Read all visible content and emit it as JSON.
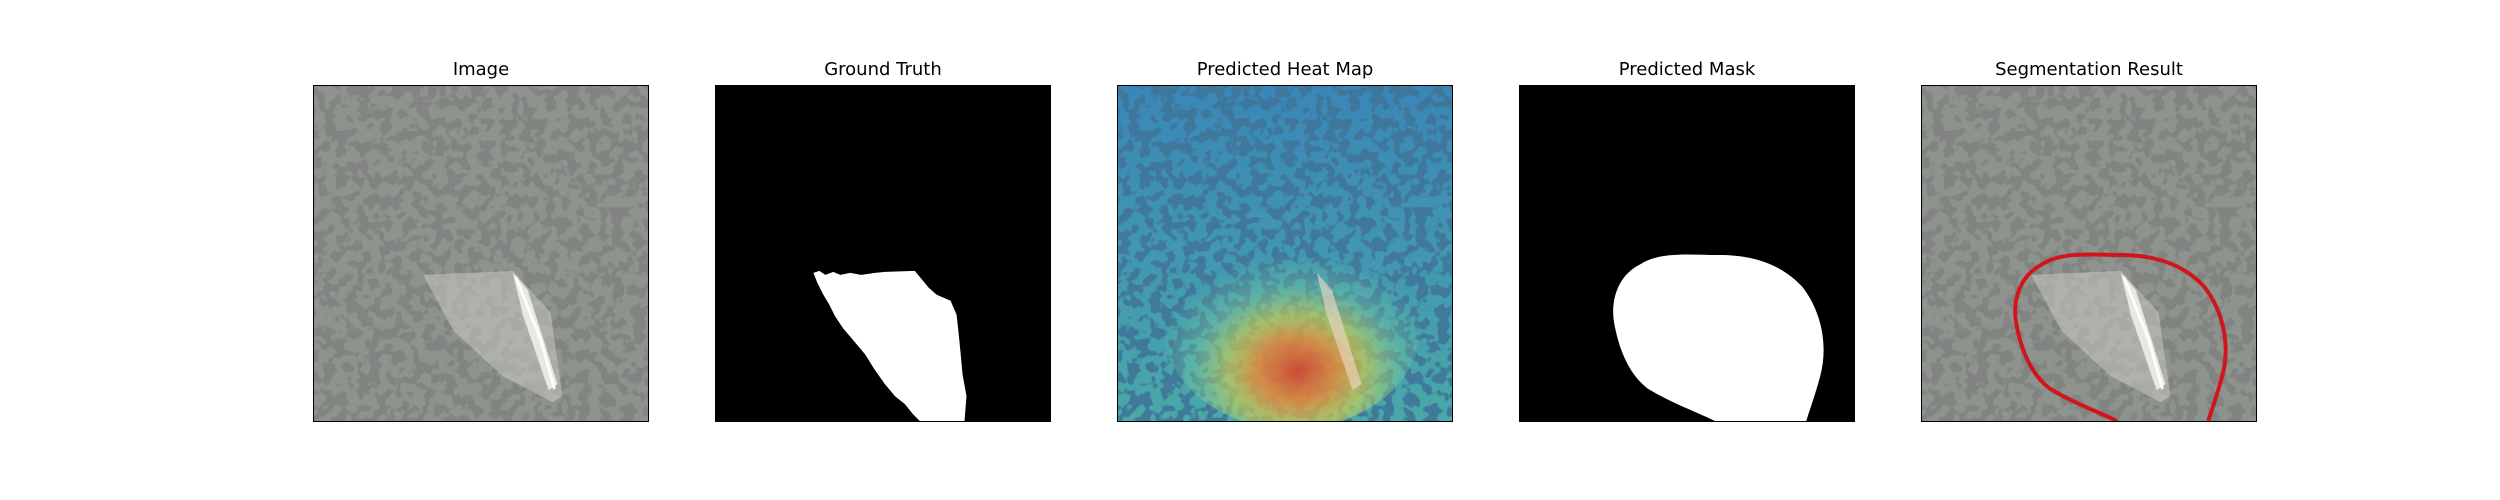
{
  "panels": [
    {
      "id": "image",
      "title": "Image",
      "content": "camouflage-texture-with-glass-shard"
    },
    {
      "id": "ground-truth",
      "title": "Ground Truth",
      "content": "binary-mask-white-on-black"
    },
    {
      "id": "heat-map",
      "title": "Predicted Heat Map",
      "content": "jet-colormap-overlay-on-texture"
    },
    {
      "id": "pred-mask",
      "title": "Predicted Mask",
      "content": "binary-mask-white-blob-on-black"
    },
    {
      "id": "seg-result",
      "title": "Segmentation Result",
      "content": "texture-with-red-contour"
    }
  ],
  "colors": {
    "texture_base": "#8f938e",
    "texture_blot": "#3a3b3a",
    "mask_fg": "#ffffff",
    "mask_bg": "#000000",
    "contour": "#d0161c",
    "heat_cool": "#2f6fb3",
    "heat_mid": "#7bd1a0",
    "heat_hot": "#d9452b"
  }
}
